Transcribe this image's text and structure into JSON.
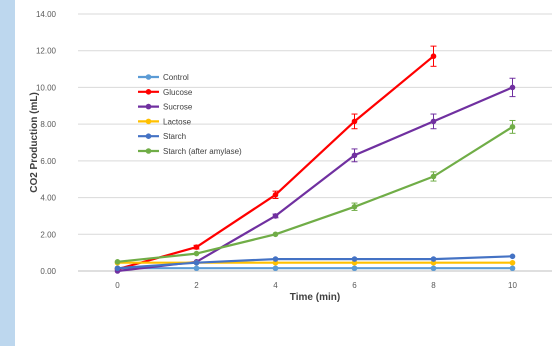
{
  "chart_data": {
    "type": "line",
    "title": "",
    "xlabel": "Time (min)",
    "ylabel": "CO2 Production (mL)",
    "x": [
      0,
      2,
      4,
      6,
      8,
      10
    ],
    "xlim": [
      -1,
      11
    ],
    "ylim": [
      0,
      14
    ],
    "y_ticks": [
      "0.00",
      "2.00",
      "4.00",
      "6.00",
      "8.00",
      "10.00",
      "12.00",
      "14.00"
    ],
    "x_ticks": [
      "0",
      "2",
      "4",
      "6",
      "8",
      "10"
    ],
    "grid": "horizontal",
    "legend_position": "upper-left, inside plot area",
    "series": [
      {
        "name": "Control",
        "color": "#5b9bd5",
        "values": [
          0.15,
          0.15,
          0.15,
          0.15,
          0.15,
          0.15
        ],
        "errors": [
          0,
          0,
          0,
          0,
          0,
          0
        ]
      },
      {
        "name": "Glucose",
        "color": "#ff0000",
        "values": [
          0.1,
          1.3,
          4.15,
          8.15,
          11.7,
          null
        ],
        "errors": [
          0,
          0.1,
          0.2,
          0.4,
          0.55,
          0
        ]
      },
      {
        "name": "Sucrose",
        "color": "#7030a0",
        "values": [
          0.0,
          0.5,
          3.0,
          6.3,
          8.15,
          10.0
        ],
        "errors": [
          0,
          0,
          0.1,
          0.35,
          0.4,
          0.5
        ]
      },
      {
        "name": "Lactose",
        "color": "#ffc000",
        "values": [
          0.45,
          0.45,
          0.45,
          0.45,
          0.45,
          0.45
        ],
        "errors": [
          0,
          0,
          0,
          0,
          0,
          0
        ]
      },
      {
        "name": "Starch",
        "color": "#4472c4",
        "values": [
          0.15,
          0.45,
          0.65,
          0.65,
          0.65,
          0.8
        ],
        "errors": [
          0,
          0,
          0,
          0,
          0,
          0
        ]
      },
      {
        "name": "Starch (after amylase)",
        "color": "#70ad47",
        "values": [
          0.5,
          0.95,
          2.0,
          3.5,
          5.15,
          7.85
        ],
        "errors": [
          0,
          0,
          0,
          0.2,
          0.25,
          0.35
        ]
      }
    ]
  }
}
